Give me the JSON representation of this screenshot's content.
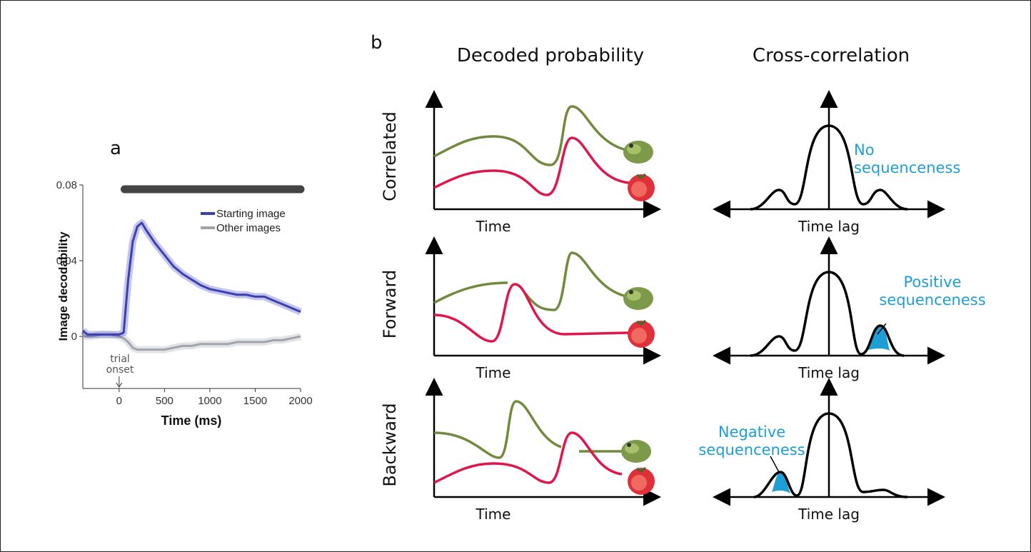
{
  "panel_labels": [
    "a",
    "b"
  ],
  "chart_data": {
    "type": "line",
    "x_label": "Time (ms)",
    "y_label": "Image decodability",
    "x": [
      -400,
      -350,
      -300,
      -200,
      -100,
      0,
      50,
      100,
      150,
      200,
      250,
      300,
      400,
      500,
      600,
      700,
      800,
      900,
      1000,
      1100,
      1200,
      1300,
      1400,
      1500,
      1600,
      1700,
      1800,
      1900,
      2000
    ],
    "series": [
      {
        "name": "Starting image",
        "color": "#3a3fb4",
        "values": [
          0.003,
          0.001,
          0.001,
          0.001,
          0.001,
          0.001,
          0.002,
          0.03,
          0.05,
          0.058,
          0.06,
          0.056,
          0.049,
          0.043,
          0.037,
          0.033,
          0.03,
          0.027,
          0.025,
          0.024,
          0.023,
          0.022,
          0.022,
          0.021,
          0.021,
          0.019,
          0.017,
          0.015,
          0.013
        ]
      },
      {
        "name": "Other images",
        "color": "#a0a4ad",
        "values": [
          0,
          0,
          0,
          0.001,
          0.001,
          0,
          -0.001,
          -0.003,
          -0.006,
          -0.007,
          -0.007,
          -0.007,
          -0.007,
          -0.007,
          -0.006,
          -0.005,
          -0.005,
          -0.004,
          -0.004,
          -0.004,
          -0.004,
          -0.003,
          -0.003,
          -0.003,
          -0.003,
          -0.002,
          -0.002,
          -0.001,
          0
        ]
      }
    ],
    "xlim": [
      -400,
      2000
    ],
    "ylim": [
      -0.0275,
      0.08
    ],
    "xticks": [
      0,
      500,
      1000,
      1500,
      2000
    ],
    "yticks": [
      0,
      0.04,
      0.08
    ],
    "significance_bar": [
      60,
      2000
    ],
    "annotation": "trial onset",
    "legend": "upper right"
  },
  "panel_b": {
    "columns": [
      "Decoded probability",
      "Cross-correlation"
    ],
    "rows": [
      "Correlated",
      "Forward",
      "Backward"
    ],
    "x_labels": [
      "Time",
      "Time",
      "Time"
    ],
    "lag_labels": [
      "Time lag",
      "Time lag",
      "Time lag"
    ],
    "notes": [
      "No sequenceness",
      "Positive sequenceness",
      "Negative sequenceness"
    ]
  }
}
